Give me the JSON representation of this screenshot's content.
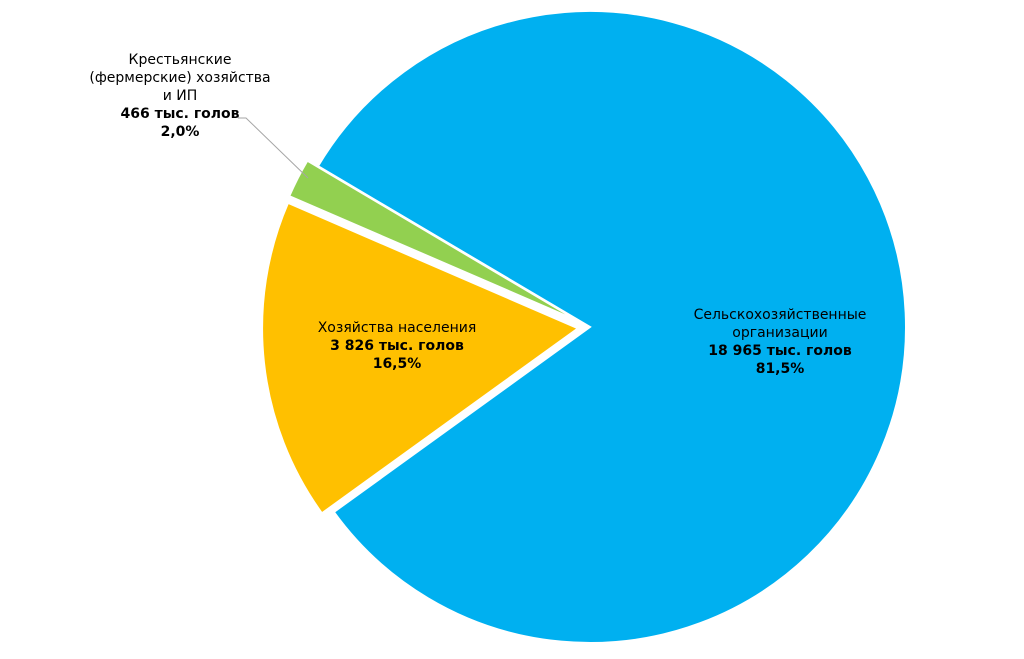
{
  "chart_data": {
    "type": "pie",
    "categories": [
      "Сельскохозяйственные\nорганизации",
      "Хозяйства населения",
      "Крестьянские\n(фермерские) хозяйства\nи ИП"
    ],
    "values": [
      18965,
      3826,
      466
    ],
    "value_labels": [
      "18 965 тыс. голов",
      "3 826 тыс. голов",
      "466 тыс. голов"
    ],
    "percents": [
      81.5,
      16.5,
      2.0
    ],
    "percent_labels": [
      "81,5%",
      "16,5%",
      "2,0%"
    ],
    "colors": [
      "#00b0f0",
      "#ffc000",
      "#92d050"
    ]
  }
}
